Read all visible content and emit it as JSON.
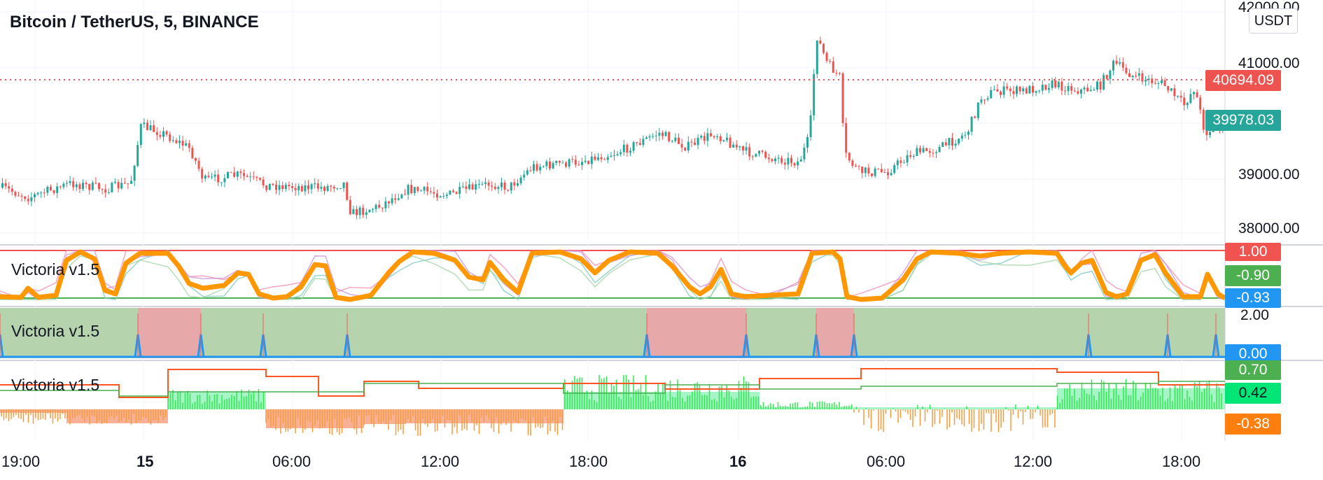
{
  "header": {
    "symbol_title": "Bitcoin / TetherUS, 5, BINANCE"
  },
  "currency_button": "USDT",
  "price_pane": {
    "axis_labels": [
      "42000.00",
      "41000.00",
      "39000.00",
      "38000.00"
    ],
    "last_price_label": "40694.09",
    "current_price_label": "39978.03",
    "colors": {
      "up": "#26a69a",
      "down": "#ef5350",
      "last_price": "#ef5350",
      "current": "#26a69a"
    }
  },
  "indicator_1": {
    "name": "Victoria v1.5",
    "badges": [
      {
        "label": "1.00",
        "color": "#f05350"
      },
      {
        "label": "-0.90",
        "color": "#4caf50"
      },
      {
        "label": "-0.93",
        "color": "#2196f3"
      }
    ]
  },
  "indicator_2": {
    "name": "Victoria v1.5",
    "axis_label": "2.00",
    "badges": [
      {
        "label": "0.00",
        "color": "#2196f3"
      }
    ]
  },
  "indicator_3": {
    "name": "Victoria v1.5",
    "badges": [
      {
        "label": "0.70",
        "color": "#4caf50"
      },
      {
        "label": "0.42",
        "color": "#00e676"
      },
      {
        "label": "-0.38",
        "color": "#ff7f0e"
      }
    ]
  },
  "time_axis": {
    "labels": [
      "19:00",
      "15",
      "06:00",
      "12:00",
      "18:00",
      "16",
      "06:00",
      "12:00",
      "18:00"
    ],
    "bold_labels": [
      "15",
      "16"
    ]
  }
}
